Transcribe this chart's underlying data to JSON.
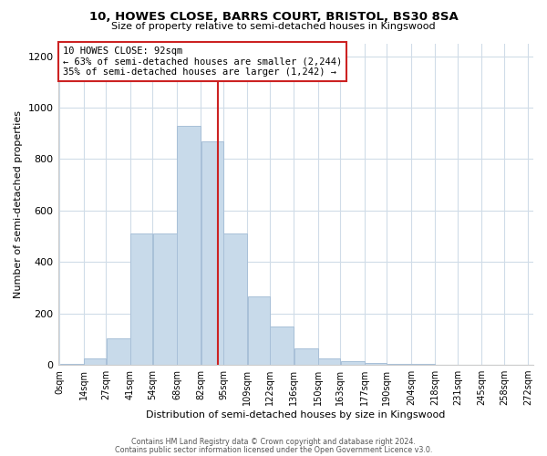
{
  "title1": "10, HOWES CLOSE, BARRS COURT, BRISTOL, BS30 8SA",
  "title2": "Size of property relative to semi-detached houses in Kingswood",
  "xlabel": "Distribution of semi-detached houses by size in Kingswood",
  "ylabel": "Number of semi-detached properties",
  "annotation_title": "10 HOWES CLOSE: 92sqm",
  "annotation_line1": "← 63% of semi-detached houses are smaller (2,244)",
  "annotation_line2": "35% of semi-detached houses are larger (1,242) →",
  "bin_edges": [
    0,
    14,
    27,
    41,
    54,
    68,
    82,
    95,
    109,
    122,
    136,
    150,
    163,
    177,
    190,
    204,
    218,
    231,
    245,
    258,
    272
  ],
  "bar_heights": [
    3,
    25,
    102,
    510,
    510,
    930,
    870,
    510,
    265,
    150,
    65,
    25,
    14,
    6,
    5,
    3,
    2,
    2,
    1,
    0
  ],
  "tick_labels": [
    "0sqm",
    "14sqm",
    "27sqm",
    "41sqm",
    "54sqm",
    "68sqm",
    "82sqm",
    "95sqm",
    "109sqm",
    "122sqm",
    "136sqm",
    "150sqm",
    "163sqm",
    "177sqm",
    "190sqm",
    "204sqm",
    "218sqm",
    "231sqm",
    "245sqm",
    "258sqm",
    "272sqm"
  ],
  "bar_color": "#c8daea",
  "bar_edge_color": "#a8c0d8",
  "vline_x": 92,
  "vline_color": "#cc2222",
  "annotation_box_edge_color": "#cc2222",
  "footer1": "Contains HM Land Registry data © Crown copyright and database right 2024.",
  "footer2": "Contains public sector information licensed under the Open Government Licence v3.0.",
  "ylim": [
    0,
    1250
  ],
  "yticks": [
    0,
    200,
    400,
    600,
    800,
    1000,
    1200
  ],
  "bg_color": "#ffffff",
  "grid_color": "#d0dce8"
}
